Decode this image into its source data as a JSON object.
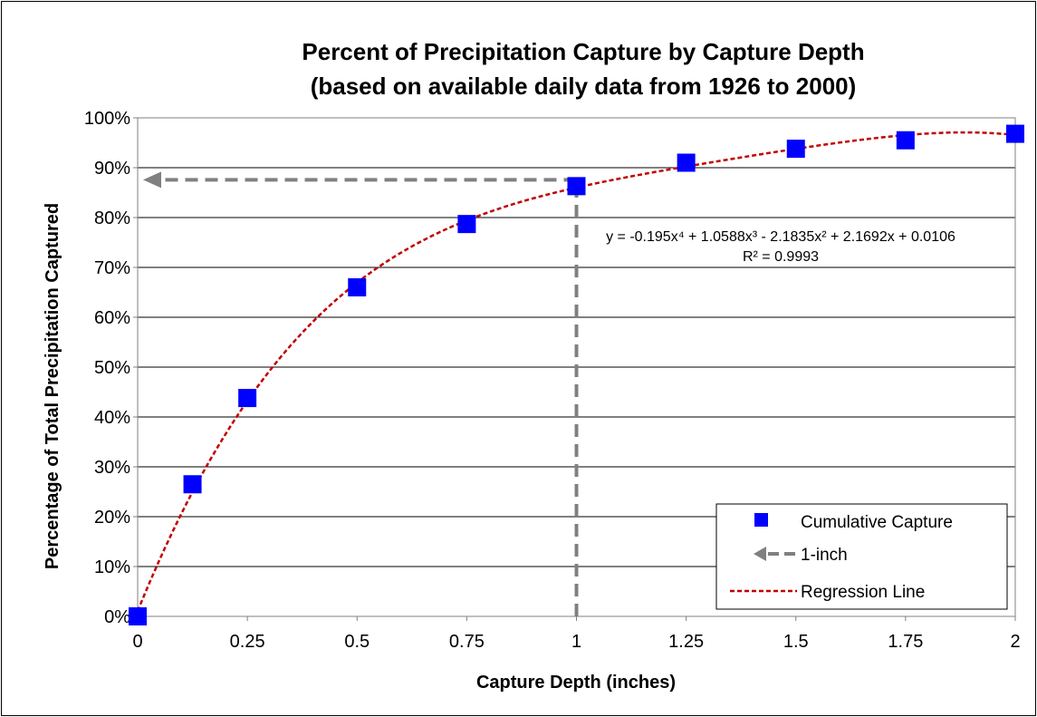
{
  "chart_data": {
    "type": "scatter",
    "title_line1": "Percent of Precipitation Capture by Capture Depth",
    "title_line2": "(based on available daily data from 1926 to 2000)",
    "xlabel": "Capture Depth (inches)",
    "ylabel": "Percentage of Total Precipitation Captured",
    "xlim": [
      0,
      2
    ],
    "ylim": [
      0,
      1
    ],
    "x_ticks": [
      0,
      0.25,
      0.5,
      0.75,
      1,
      1.25,
      1.5,
      1.75,
      2
    ],
    "x_tick_labels": [
      "0",
      "0.25",
      "0.5",
      "0.75",
      "1",
      "1.25",
      "1.5",
      "1.75",
      "2"
    ],
    "y_ticks": [
      0,
      0.1,
      0.2,
      0.3,
      0.4,
      0.5,
      0.6,
      0.7,
      0.8,
      0.9,
      1.0
    ],
    "y_tick_labels": [
      "0%",
      "10%",
      "20%",
      "30%",
      "40%",
      "50%",
      "60%",
      "70%",
      "80%",
      "90%",
      "100%"
    ],
    "grid": "horizontal",
    "series": [
      {
        "name": "Cumulative Capture",
        "kind": "markers",
        "color": "#0000FF",
        "x": [
          0,
          0.125,
          0.25,
          0.5,
          0.75,
          1.0,
          1.25,
          1.5,
          1.75,
          2.0
        ],
        "y": [
          0.0,
          0.265,
          0.438,
          0.66,
          0.787,
          0.863,
          0.91,
          0.938,
          0.955,
          0.968
        ]
      },
      {
        "name": "1-inch",
        "kind": "dashed-reference",
        "color": "#808080",
        "x_value": 1.0,
        "y_value": 0.863
      },
      {
        "name": "Regression Line",
        "kind": "polynomial-fit",
        "color": "#C00000",
        "coefficients": [
          -0.195,
          1.0588,
          -2.1835,
          2.1692,
          0.0106
        ]
      }
    ],
    "equation_text": "y = -0.195x⁴ + 1.0588x³ - 2.1835x² + 2.1692x + 0.0106",
    "r2_text": "R² = 0.9993",
    "legend": {
      "position": "bottom-right",
      "entries": [
        "Cumulative Capture",
        "1-inch",
        "Regression Line"
      ]
    }
  }
}
